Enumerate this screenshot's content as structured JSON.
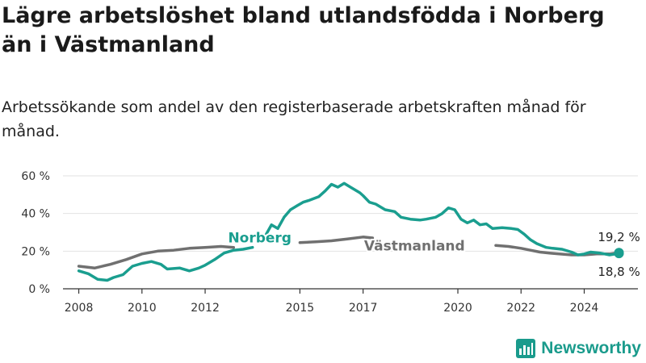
{
  "title": "Lägre arbetslöshet bland utlandsfödda i Norberg än i Västmanland",
  "subtitle": "Arbetssökande som andel av den registerbaserade arbetskraften månad för månad.",
  "brand": {
    "name": "Newsworthy",
    "icon": "newsworthy-bar-chart-icon"
  },
  "colors": {
    "norberg": "#1a9e8f",
    "vastmanland": "#707070",
    "grid": "#e2e2e2",
    "axis": "#333333"
  },
  "chart_data": {
    "type": "line",
    "ylim": [
      0,
      60
    ],
    "xlim": [
      2007.5,
      2025.7
    ],
    "y_ticks": [
      0,
      20,
      40,
      60
    ],
    "y_tick_labels": [
      "0 %",
      "20 %",
      "40 %",
      "60 %"
    ],
    "x_ticks": [
      2008,
      2010,
      2012,
      2015,
      2017,
      2020,
      2022,
      2024
    ],
    "x_tick_labels": [
      "2008",
      "2010",
      "2012",
      "2015",
      "2017",
      "2020",
      "2022",
      "2024"
    ],
    "grid": "horizontal",
    "series": [
      {
        "name": "Norberg",
        "last_value_label": "18,8 %",
        "segments": [
          [
            [
              2008.0,
              9.5
            ],
            [
              2008.3,
              8.0
            ],
            [
              2008.6,
              5.0
            ],
            [
              2008.9,
              4.5
            ],
            [
              2009.1,
              6.0
            ],
            [
              2009.4,
              7.5
            ],
            [
              2009.7,
              12.0
            ],
            [
              2010.0,
              13.5
            ],
            [
              2010.3,
              14.5
            ],
            [
              2010.6,
              13.0
            ],
            [
              2010.8,
              10.5
            ],
            [
              2011.2,
              11.0
            ],
            [
              2011.5,
              9.5
            ],
            [
              2011.8,
              11.0
            ],
            [
              2012.0,
              12.5
            ],
            [
              2012.3,
              15.5
            ],
            [
              2012.6,
              19.0
            ],
            [
              2012.9,
              20.5
            ],
            [
              2013.2,
              21.0
            ],
            [
              2013.5,
              22.0
            ]
          ],
          [
            [
              2013.9,
              28.0
            ],
            [
              2014.1,
              34.0
            ],
            [
              2014.3,
              32.0
            ],
            [
              2014.5,
              38.0
            ],
            [
              2014.7,
              42.0
            ],
            [
              2014.9,
              44.0
            ],
            [
              2015.1,
              46.0
            ],
            [
              2015.3,
              47.0
            ],
            [
              2015.6,
              49.0
            ],
            [
              2015.8,
              52.0
            ],
            [
              2016.0,
              55.5
            ],
            [
              2016.2,
              54.0
            ],
            [
              2016.4,
              56.0
            ],
            [
              2016.6,
              54.0
            ],
            [
              2016.9,
              51.0
            ],
            [
              2017.0,
              49.5
            ],
            [
              2017.2,
              46.0
            ],
            [
              2017.4,
              45.0
            ],
            [
              2017.7,
              42.0
            ],
            [
              2018.0,
              41.0
            ],
            [
              2018.2,
              38.0
            ],
            [
              2018.5,
              37.0
            ],
            [
              2018.8,
              36.5
            ],
            [
              2019.0,
              37.0
            ],
            [
              2019.3,
              38.0
            ],
            [
              2019.5,
              40.0
            ],
            [
              2019.7,
              43.0
            ],
            [
              2019.9,
              42.0
            ],
            [
              2020.1,
              37.0
            ],
            [
              2020.3,
              35.0
            ],
            [
              2020.5,
              36.5
            ],
            [
              2020.7,
              34.0
            ],
            [
              2020.9,
              34.5
            ],
            [
              2021.1,
              32.0
            ],
            [
              2021.4,
              32.5
            ],
            [
              2021.7,
              32.0
            ],
            [
              2021.9,
              31.5
            ],
            [
              2022.1,
              29.0
            ],
            [
              2022.3,
              26.0
            ],
            [
              2022.5,
              24.0
            ],
            [
              2022.8,
              22.0
            ],
            [
              2023.0,
              21.5
            ],
            [
              2023.3,
              21.0
            ],
            [
              2023.6,
              19.5
            ],
            [
              2023.8,
              18.0
            ],
            [
              2024.0,
              18.5
            ],
            [
              2024.2,
              19.5
            ],
            [
              2024.5,
              19.0
            ],
            [
              2024.8,
              18.0
            ],
            [
              2025.0,
              18.5
            ],
            [
              2025.1,
              18.8
            ]
          ]
        ]
      },
      {
        "name": "Västmanland",
        "last_value_label": "19,2 %",
        "segments": [
          [
            [
              2008.0,
              12.0
            ],
            [
              2008.5,
              11.0
            ],
            [
              2009.0,
              13.0
            ],
            [
              2009.5,
              15.5
            ],
            [
              2010.0,
              18.5
            ],
            [
              2010.5,
              20.0
            ],
            [
              2011.0,
              20.5
            ],
            [
              2011.5,
              21.5
            ],
            [
              2012.0,
              22.0
            ],
            [
              2012.5,
              22.5
            ],
            [
              2012.9,
              22.0
            ]
          ],
          [
            [
              2015.0,
              24.5
            ],
            [
              2015.5,
              25.0
            ],
            [
              2016.0,
              25.5
            ],
            [
              2016.5,
              26.5
            ],
            [
              2017.0,
              27.5
            ],
            [
              2017.3,
              27.0
            ]
          ],
          [
            [
              2021.2,
              23.0
            ],
            [
              2021.6,
              22.5
            ],
            [
              2022.0,
              21.5
            ],
            [
              2022.3,
              20.5
            ],
            [
              2022.6,
              19.5
            ],
            [
              2022.9,
              19.0
            ],
            [
              2023.2,
              18.5
            ],
            [
              2023.6,
              18.0
            ],
            [
              2024.0,
              18.0
            ],
            [
              2024.4,
              18.5
            ],
            [
              2024.8,
              18.5
            ],
            [
              2025.1,
              19.2
            ]
          ]
        ]
      }
    ],
    "annotations": [
      {
        "text": "Norberg",
        "series": "Norberg",
        "x": 2013.2,
        "y": 22.0
      },
      {
        "text": "Västmanland",
        "series": "Västmanland",
        "x": 2019.2,
        "y": 23.0
      }
    ]
  }
}
